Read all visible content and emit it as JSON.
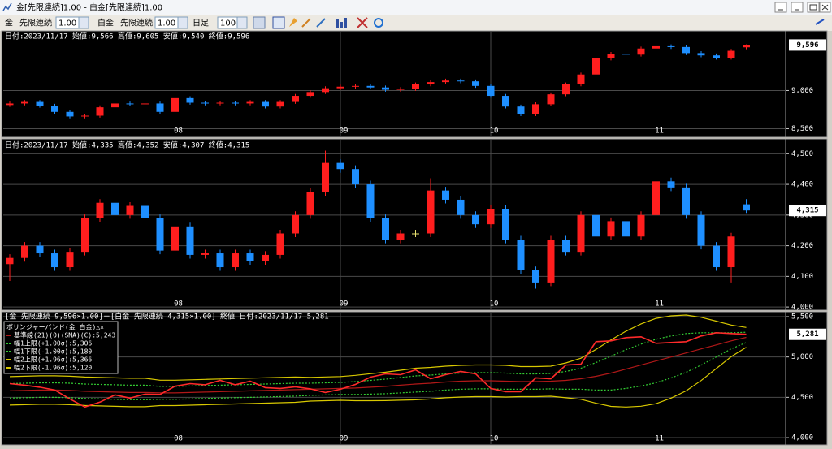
{
  "window": {
    "title": "金[先限連続]1.00 - 白金[先限連続]1.00"
  },
  "toolbar": {
    "symbol1": "金",
    "contract1": "先限連続",
    "multiplier1": "1.00",
    "symbol2": "白金",
    "contract2": "先限連続",
    "multiplier2": "1.00",
    "period": "日足",
    "count": "100"
  },
  "x_categories": [
    null,
    null,
    null,
    null,
    null,
    null,
    null,
    null,
    null,
    null,
    null,
    "08",
    null,
    null,
    null,
    null,
    null,
    null,
    null,
    null,
    null,
    null,
    "09",
    null,
    null,
    null,
    null,
    null,
    null,
    null,
    null,
    null,
    "10",
    null,
    null,
    null,
    null,
    null,
    null,
    null,
    null,
    null,
    null,
    "11",
    null,
    null,
    null,
    null,
    null,
    null
  ],
  "panels": [
    {
      "type": "candlestick",
      "header": "日付:2023/11/17 始値:9,566 高値:9,605 安値:9,540 終値:9,596",
      "up_color": "#ff1e1e",
      "down_color": "#1e8fff",
      "flat_color": "#e8e070",
      "open": [
        8810,
        8830,
        8850,
        8800,
        8720,
        8660,
        8670,
        8780,
        8830,
        8820,
        8830,
        8720,
        8900,
        8840,
        8830,
        8840,
        8830,
        8850,
        8790,
        8850,
        8930,
        8980,
        9030,
        9050,
        9060,
        9040,
        9010,
        9020,
        9080,
        9110,
        9130,
        9120,
        9060,
        8930,
        8790,
        8690,
        8820,
        8950,
        9080,
        9210,
        9420,
        9480,
        9470,
        9550,
        9580,
        9570,
        9490,
        9460,
        9430,
        9566
      ],
      "high": [
        8855,
        8875,
        8875,
        8825,
        8745,
        8695,
        8805,
        8855,
        8855,
        8855,
        8855,
        8925,
        8925,
        8865,
        8865,
        8865,
        8875,
        8875,
        8875,
        8955,
        9005,
        9055,
        9075,
        9085,
        9085,
        9065,
        9045,
        9105,
        9135,
        9155,
        9155,
        9145,
        9085,
        8955,
        8815,
        8845,
        8975,
        9105,
        9235,
        9445,
        9505,
        9505,
        9575,
        9700,
        9605,
        9595,
        9515,
        9485,
        9545,
        9605
      ],
      "low": [
        8785,
        8805,
        8775,
        8695,
        8635,
        8635,
        8645,
        8755,
        8795,
        8795,
        8695,
        8695,
        8815,
        8805,
        8805,
        8805,
        8805,
        8765,
        8765,
        8825,
        8905,
        8955,
        9005,
        9025,
        9015,
        8985,
        8985,
        8995,
        9055,
        9085,
        9095,
        9035,
        8905,
        8765,
        8665,
        8665,
        8795,
        8925,
        9055,
        9185,
        9395,
        9445,
        9445,
        9525,
        9545,
        9465,
        9435,
        9405,
        9405,
        9540
      ],
      "close": [
        8830,
        8850,
        8800,
        8720,
        8660,
        8670,
        8780,
        8830,
        8820,
        8830,
        8720,
        8900,
        8840,
        8830,
        8840,
        8830,
        8850,
        8790,
        8850,
        8930,
        8980,
        9030,
        9050,
        9060,
        9040,
        9010,
        9020,
        9080,
        9110,
        9130,
        9120,
        9060,
        8930,
        8790,
        8690,
        8820,
        8950,
        9080,
        9210,
        9420,
        9480,
        9470,
        9550,
        9580,
        9570,
        9490,
        9460,
        9430,
        9520,
        9596
      ],
      "last_label": "9,596",
      "ylim": [
        8420,
        9760
      ],
      "yticks": [
        {
          "value": 8500,
          "label": "8,500"
        },
        {
          "value": 9000,
          "label": "9,000"
        }
      ]
    },
    {
      "type": "candlestick",
      "header": "日付:2023/11/17 始値:4,335 高値:4,352 安値:4,307 終値:4,315",
      "up_color": "#ff1e1e",
      "down_color": "#1e8fff",
      "flat_color": "#e8e070",
      "open": [
        4140,
        4160,
        4200,
        4175,
        4130,
        4180,
        4290,
        4340,
        4300,
        4330,
        4290,
        4184,
        4263,
        4170,
        4175,
        4130,
        4175,
        4150,
        4170,
        4240,
        4300,
        4375,
        4470,
        4450,
        4400,
        4290,
        4220,
        4240,
        4240,
        4380,
        4350,
        4300,
        4270,
        4320,
        4220,
        4120,
        4080,
        4220,
        4180,
        4300,
        4230,
        4280,
        4230,
        4300,
        4410,
        4390,
        4300,
        4200,
        4130,
        4335
      ],
      "high": [
        4172,
        4212,
        4212,
        4187,
        4192,
        4302,
        4352,
        4352,
        4342,
        4342,
        4302,
        4275,
        4275,
        4187,
        4187,
        4187,
        4187,
        4182,
        4252,
        4312,
        4387,
        4510,
        4482,
        4462,
        4412,
        4302,
        4252,
        4252,
        4420,
        4392,
        4362,
        4312,
        4332,
        4332,
        4232,
        4132,
        4232,
        4232,
        4312,
        4312,
        4292,
        4292,
        4312,
        4490,
        4422,
        4402,
        4312,
        4212,
        4242,
        4352
      ],
      "low": [
        4085,
        4148,
        4163,
        4118,
        4118,
        4168,
        4278,
        4288,
        4288,
        4278,
        4172,
        4172,
        4158,
        4158,
        4118,
        4118,
        4138,
        4138,
        4158,
        4228,
        4288,
        4363,
        4438,
        4388,
        4278,
        4208,
        4208,
        4228,
        4228,
        4338,
        4288,
        4258,
        4258,
        4208,
        4108,
        4060,
        4068,
        4168,
        4168,
        4218,
        4218,
        4218,
        4218,
        4288,
        4378,
        4288,
        4188,
        4118,
        4080,
        4307
      ],
      "close": [
        4160,
        4200,
        4175,
        4130,
        4180,
        4290,
        4340,
        4300,
        4330,
        4290,
        4184,
        4263,
        4170,
        4175,
        4130,
        4175,
        4150,
        4170,
        4240,
        4300,
        4375,
        4470,
        4450,
        4400,
        4290,
        4220,
        4240,
        4240,
        4380,
        4350,
        4300,
        4270,
        4320,
        4220,
        4120,
        4080,
        4220,
        4180,
        4300,
        4230,
        4280,
        4230,
        4300,
        4410,
        4390,
        4300,
        4200,
        4130,
        4230,
        4315
      ],
      "last_label": "4,315",
      "ylim": [
        3995,
        4530
      ],
      "yticks": [
        {
          "value": 4000,
          "label": "4,000"
        },
        {
          "value": 4100,
          "label": "4,100"
        },
        {
          "value": 4200,
          "label": "4,200"
        },
        {
          "value": 4300,
          "label": "4,300"
        },
        {
          "value": 4400,
          "label": "4,400"
        },
        {
          "value": 4500,
          "label": "4,500"
        }
      ]
    },
    {
      "type": "line",
      "header": "[金 先限連続 9,596×1.00]－[白金 先限連続 4,315×1.00] 終値 日付:2023/11/17 5,281",
      "legend_title": "ボリンジャーバンド(金 白金)△×",
      "color": "#ff2a2a",
      "values": [
        4670,
        4650,
        4625,
        4590,
        4480,
        4380,
        4440,
        4530,
        4490,
        4540,
        4536,
        4637,
        4670,
        4655,
        4710,
        4655,
        4700,
        4620,
        4610,
        4630,
        4605,
        4560,
        4600,
        4660,
        4750,
        4790,
        4780,
        4840,
        4730,
        4780,
        4820,
        4790,
        4610,
        4570,
        4570,
        4740,
        4730,
        4900,
        4910,
        5190,
        5200,
        5240,
        5250,
        5170,
        5180,
        5190,
        5260,
        5300,
        5290,
        5281
      ],
      "series": [
        {
          "name": "基準線(21)(0)(SMA)(C):5,243",
          "color": "#b01818",
          "dash": false,
          "values": [
            4580,
            4585,
            4590,
            4590,
            4585,
            4575,
            4570,
            4565,
            4560,
            4560,
            4555,
            4555,
            4560,
            4565,
            4570,
            4575,
            4580,
            4585,
            4590,
            4595,
            4600,
            4605,
            4610,
            4615,
            4625,
            4635,
            4650,
            4665,
            4675,
            4690,
            4700,
            4705,
            4705,
            4700,
            4695,
            4695,
            4700,
            4710,
            4730,
            4760,
            4800,
            4850,
            4900,
            4950,
            5000,
            5050,
            5100,
            5150,
            5200,
            5243
          ]
        },
        {
          "name": "幅1上限(+1.00σ):5,306",
          "color": "#33cc33",
          "dash": true,
          "values": [
            4670,
            4675,
            4680,
            4680,
            4675,
            4665,
            4660,
            4655,
            4650,
            4650,
            4635,
            4635,
            4640,
            4645,
            4650,
            4655,
            4660,
            4665,
            4670,
            4675,
            4675,
            4680,
            4685,
            4695,
            4710,
            4725,
            4745,
            4765,
            4775,
            4790,
            4800,
            4805,
            4805,
            4800,
            4790,
            4790,
            4795,
            4820,
            4860,
            4930,
            5010,
            5090,
            5160,
            5220,
            5260,
            5290,
            5300,
            5300,
            5300,
            5306
          ]
        },
        {
          "name": "幅1下限(-1.00σ):5,180",
          "color": "#33cc33",
          "dash": true,
          "values": [
            4490,
            4495,
            4500,
            4500,
            4495,
            4485,
            4480,
            4475,
            4470,
            4470,
            4475,
            4475,
            4480,
            4485,
            4490,
            4495,
            4500,
            4505,
            4510,
            4515,
            4525,
            4530,
            4535,
            4535,
            4540,
            4545,
            4555,
            4565,
            4575,
            4590,
            4600,
            4605,
            4605,
            4600,
            4600,
            4600,
            4605,
            4600,
            4600,
            4590,
            4590,
            4610,
            4640,
            4680,
            4740,
            4810,
            4900,
            5000,
            5100,
            5180
          ]
        },
        {
          "name": "幅2上限(+1.96σ):5,366",
          "color": "#d8c800",
          "dash": false,
          "values": [
            4756,
            4761,
            4766,
            4766,
            4761,
            4751,
            4746,
            4741,
            4736,
            4736,
            4712,
            4712,
            4717,
            4722,
            4727,
            4732,
            4737,
            4742,
            4747,
            4752,
            4747,
            4752,
            4757,
            4772,
            4792,
            4811,
            4836,
            4861,
            4871,
            4886,
            4896,
            4901,
            4901,
            4896,
            4881,
            4881,
            4886,
            4926,
            4985,
            5093,
            5212,
            5320,
            5410,
            5479,
            5510,
            5520,
            5492,
            5444,
            5396,
            5366
          ]
        },
        {
          "name": "幅2下限(-1.96σ):5,120",
          "color": "#d8c800",
          "dash": false,
          "values": [
            4404,
            4409,
            4414,
            4414,
            4409,
            4399,
            4394,
            4389,
            4384,
            4384,
            4398,
            4398,
            4403,
            4408,
            4413,
            4418,
            4423,
            4428,
            4433,
            4438,
            4453,
            4458,
            4463,
            4458,
            4458,
            4459,
            4464,
            4469,
            4479,
            4494,
            4504,
            4509,
            4509,
            4504,
            4509,
            4509,
            4514,
            4494,
            4475,
            4427,
            4388,
            4380,
            4390,
            4421,
            4490,
            4580,
            4708,
            4856,
            5004,
            5120
          ]
        }
      ],
      "last_label": "5,281",
      "ylim": [
        3930,
        5550
      ],
      "yticks": [
        {
          "value": 4000,
          "label": "4,000"
        },
        {
          "value": 4500,
          "label": "4,500"
        },
        {
          "value": 5000,
          "label": "5,000"
        },
        {
          "value": 5500,
          "label": "5,500"
        }
      ]
    }
  ]
}
